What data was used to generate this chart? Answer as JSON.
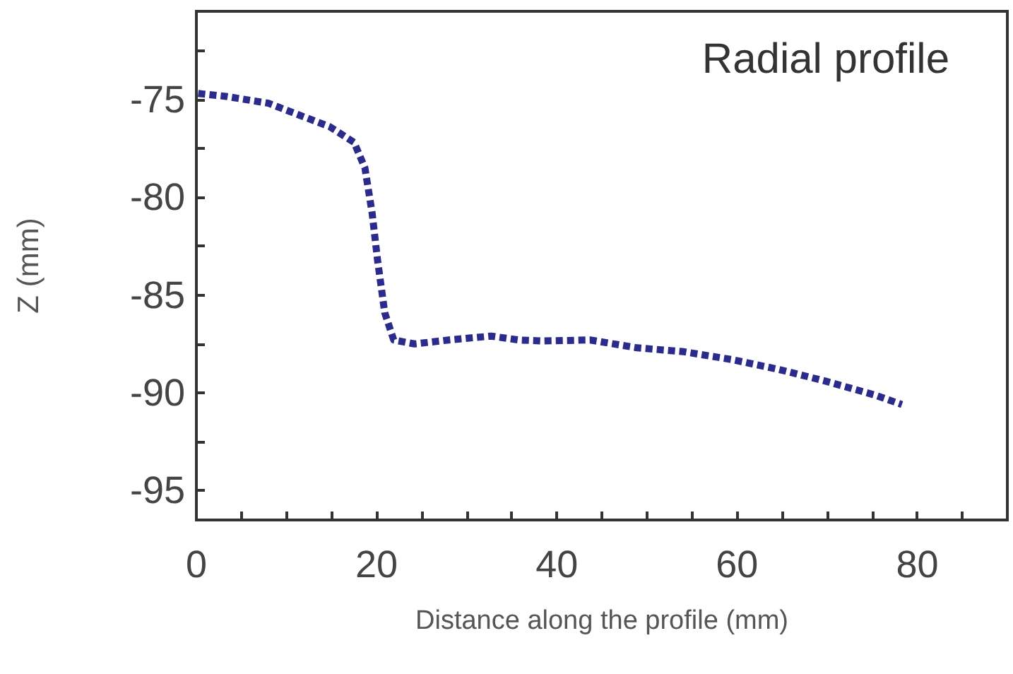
{
  "chart_data": {
    "type": "line",
    "title": "Radial profile",
    "xlabel": "Distance along the profile (mm)",
    "ylabel": "Z (mm)",
    "xlim": [
      0,
      90
    ],
    "ylim": [
      -96.5,
      -70.5
    ],
    "xticks": [
      0,
      {
        "value": 5,
        "label": null
      },
      {
        "value": 10,
        "label": null
      },
      {
        "value": 15,
        "label": null
      },
      20,
      {
        "value": 25,
        "label": null
      },
      {
        "value": 30,
        "label": null
      },
      {
        "value": 35,
        "label": null
      },
      40,
      {
        "value": 45,
        "label": null
      },
      {
        "value": 50,
        "label": null
      },
      {
        "value": 55,
        "label": null
      },
      60,
      {
        "value": 65,
        "label": null
      },
      {
        "value": 70,
        "label": null
      },
      {
        "value": 75,
        "label": null
      },
      80,
      {
        "value": 85,
        "label": null
      }
    ],
    "yticks": [
      -95,
      {
        "value": -92.5,
        "label": null
      },
      -90,
      {
        "value": -87.5,
        "label": null
      },
      -85,
      {
        "value": -82.5,
        "label": null
      },
      -80,
      {
        "value": -77.5,
        "label": null
      },
      -75,
      {
        "value": -72.5,
        "label": null
      }
    ],
    "line_style": "dashed",
    "marker": "none",
    "series": [
      {
        "color": "#2b2b8c",
        "x": [
          0.2,
          3.3,
          8,
          14.8,
          17.5,
          18.7,
          19.5,
          20.1,
          20.9,
          21.9,
          24.2,
          28,
          32.7,
          35.8,
          38.4,
          43.7,
          48.9,
          54.1,
          59.4,
          64.6,
          69.8,
          75.2,
          78.3
        ],
        "values": [
          -74.7,
          -74.85,
          -75.2,
          -76.4,
          -77.2,
          -78.5,
          -80.8,
          -83.2,
          -85.9,
          -87.3,
          -87.5,
          -87.3,
          -87.1,
          -87.3,
          -87.35,
          -87.3,
          -87.7,
          -87.9,
          -88.3,
          -88.8,
          -89.4,
          -90.1,
          -90.6
        ]
      }
    ]
  }
}
